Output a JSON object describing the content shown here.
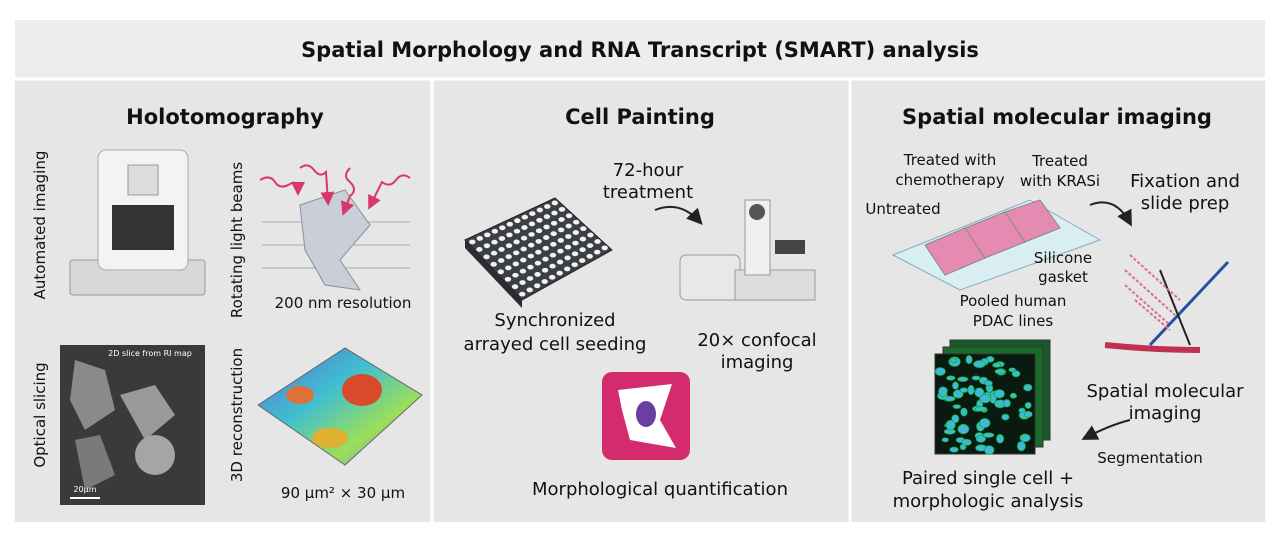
{
  "header": {
    "title": "Spatial Morphology and RNA Transcript (SMART) analysis"
  },
  "panels": [
    {
      "title": "Holotomography",
      "automated": "Automated imaging",
      "rotating": "Rotating light beams",
      "resolution": "200 nm resolution",
      "slicing": "Optical slicing",
      "slice_caption": "2D slice from RI map",
      "scale_bar": "20µm",
      "reconstruction": "3D reconstruction",
      "volume": "90 µm² × 30 µm"
    },
    {
      "title": "Cell Painting",
      "treatment": [
        "72-hour",
        "treatment"
      ],
      "seeding": [
        "Synchronized",
        "arrayed cell seeding"
      ],
      "confocal": [
        "20× confocal",
        "imaging"
      ],
      "quantification": "Morphological quantification"
    },
    {
      "title": "Spatial molecular imaging",
      "chemo": [
        "Treated with",
        "chemotherapy"
      ],
      "krasi": [
        "Treated",
        "with KRASi"
      ],
      "untreated": "Untreated",
      "fixation": [
        "Fixation and",
        "slide prep"
      ],
      "gasket": [
        "Silicone",
        "gasket"
      ],
      "pooled": [
        "Pooled human",
        "PDAC lines"
      ],
      "smi": [
        "Spatial molecular",
        "imaging"
      ],
      "segmentation": "Segmentation",
      "paired": [
        "Paired single cell +",
        "morphologic analysis"
      ]
    }
  ]
}
